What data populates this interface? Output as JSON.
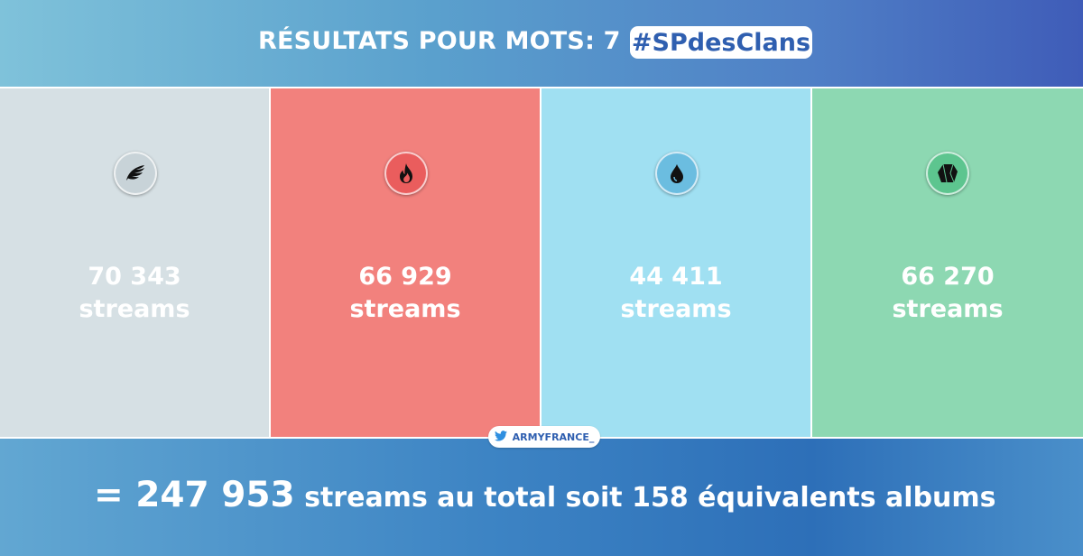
{
  "header": {
    "title": "RÉSULTATS POUR MOTS: 7",
    "hashtag": "#SPdesClans"
  },
  "panels": [
    {
      "icon": "wing-icon",
      "value": "70 343",
      "unit": "streams",
      "color": "#d6e0e4"
    },
    {
      "icon": "flame-icon",
      "value": "66 929",
      "unit": "streams",
      "color": "#f2817d"
    },
    {
      "icon": "water-drop-icon",
      "value": "44 411",
      "unit": "streams",
      "color": "#a0e0f2"
    },
    {
      "icon": "rock-icon",
      "value": "66 270",
      "unit": "streams",
      "color": "#8dd8b2"
    }
  ],
  "credit": {
    "icon": "twitter-bird-icon",
    "handle": "ARMYFRANCE_"
  },
  "footer": {
    "total_prefix": "= 247 953",
    "total_rest": " streams au total soit 158 équivalents albums"
  }
}
